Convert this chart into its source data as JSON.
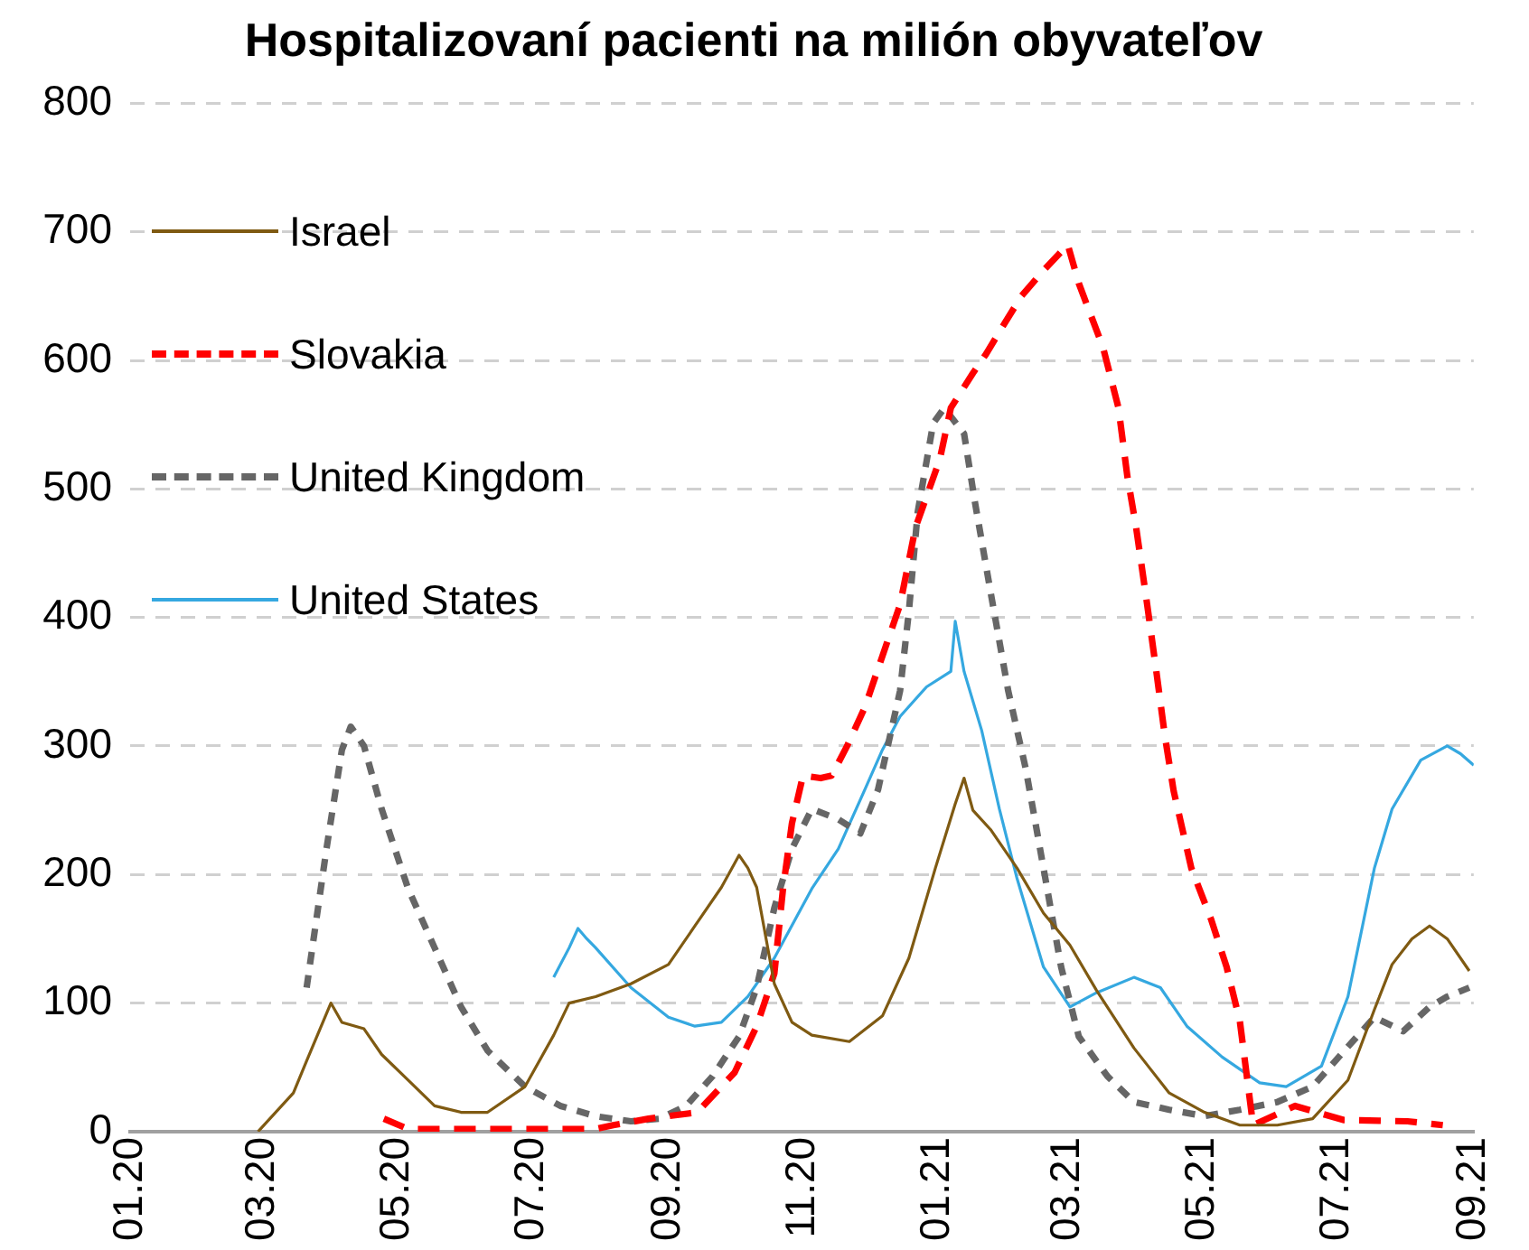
{
  "chart_data": {
    "type": "line",
    "title": "Hospitalizovaní pacienti na milión obyvateľov",
    "ylim": [
      0,
      800
    ],
    "yticks": [
      0,
      100,
      200,
      300,
      400,
      500,
      600,
      700,
      800
    ],
    "xlim": [
      "2020-01-01",
      "2021-09-01"
    ],
    "xticks": [
      {
        "value": "2020-01-01",
        "label": "01.20"
      },
      {
        "value": "2020-03-01",
        "label": "03.20"
      },
      {
        "value": "2020-05-01",
        "label": "05.20"
      },
      {
        "value": "2020-07-01",
        "label": "07.20"
      },
      {
        "value": "2020-09-01",
        "label": "09.20"
      },
      {
        "value": "2020-11-01",
        "label": "11.20"
      },
      {
        "value": "2021-01-01",
        "label": "01.21"
      },
      {
        "value": "2021-03-01",
        "label": "03.21"
      },
      {
        "value": "2021-05-01",
        "label": "05.21"
      },
      {
        "value": "2021-07-01",
        "label": "07.21"
      },
      {
        "value": "2021-09-01",
        "label": "09.21"
      }
    ],
    "grid": "y",
    "legend": "top left",
    "marker": "none",
    "series": [
      {
        "name": "Israel",
        "color": "#7f5a12",
        "line_style": "solid",
        "x": [
          "2020-02-28",
          "2020-03-15",
          "2020-03-21",
          "2020-04-01",
          "2020-04-06",
          "2020-04-16",
          "2020-04-24",
          "2020-05-06",
          "2020-05-18",
          "2020-05-30",
          "2020-06-11",
          "2020-06-28",
          "2020-07-11",
          "2020-07-18",
          "2020-07-30",
          "2020-08-15",
          "2020-09-01",
          "2020-09-13",
          "2020-09-25",
          "2020-10-03",
          "2020-10-07",
          "2020-10-11",
          "2020-10-19",
          "2020-10-27",
          "2020-11-05",
          "2020-11-22",
          "2020-12-07",
          "2020-12-19",
          "2020-12-31",
          "2021-01-09",
          "2021-01-13",
          "2021-01-17",
          "2021-01-25",
          "2021-02-06",
          "2021-02-18",
          "2021-03-02",
          "2021-03-14",
          "2021-03-31",
          "2021-04-16",
          "2021-05-02",
          "2021-05-18",
          "2021-06-04",
          "2021-06-20",
          "2021-07-06",
          "2021-07-18",
          "2021-07-26",
          "2021-08-04",
          "2021-08-12",
          "2021-08-20",
          "2021-08-30"
        ],
        "values": [
          0,
          30,
          55,
          100,
          85,
          80,
          60,
          40,
          20,
          15,
          15,
          35,
          75,
          100,
          105,
          115,
          130,
          160,
          190,
          215,
          205,
          190,
          115,
          85,
          75,
          70,
          90,
          135,
          205,
          255,
          275,
          250,
          235,
          205,
          170,
          145,
          110,
          65,
          30,
          15,
          5,
          5,
          10,
          40,
          95,
          130,
          150,
          160,
          150,
          125
        ]
      },
      {
        "name": "Slovakia",
        "color": "#ff0000",
        "line_style": "dashed",
        "x": [
          "2020-04-25",
          "2020-05-06",
          "2020-06-11",
          "2020-07-30",
          "2020-08-07",
          "2020-08-23",
          "2020-09-14",
          "2020-10-01",
          "2020-10-11",
          "2020-10-19",
          "2020-10-23",
          "2020-10-27",
          "2020-11-01",
          "2020-11-09",
          "2020-11-14",
          "2020-11-21",
          "2020-11-29",
          "2020-12-07",
          "2020-12-15",
          "2020-12-22",
          "2021-01-02",
          "2021-01-07",
          "2021-01-17",
          "2021-01-23",
          "2021-01-30",
          "2021-02-08",
          "2021-02-18",
          "2021-03-01",
          "2021-03-06",
          "2021-03-17",
          "2021-03-24",
          "2021-03-28",
          "2021-04-01",
          "2021-04-06",
          "2021-04-10",
          "2021-04-14",
          "2021-04-18",
          "2021-04-26",
          "2021-05-05",
          "2021-05-12",
          "2021-05-18",
          "2021-05-24",
          "2021-06-12",
          "2021-07-04",
          "2021-08-02",
          "2021-08-18"
        ],
        "values": [
          10,
          2,
          2,
          2,
          5,
          10,
          15,
          46,
          82,
          123,
          190,
          240,
          277,
          275,
          277,
          300,
          330,
          370,
          410,
          470,
          523,
          563,
          590,
          605,
          625,
          650,
          670,
          690,
          660,
          610,
          563,
          510,
          470,
          410,
          360,
          308,
          265,
          205,
          165,
          128,
          86,
          5,
          20,
          9,
          8,
          5
        ]
      },
      {
        "name": "United Kingdom",
        "color": "#666666",
        "line_style": "dashed",
        "x": [
          "2020-03-21",
          "2020-03-30",
          "2020-04-06",
          "2020-04-10",
          "2020-04-16",
          "2020-04-24",
          "2020-05-06",
          "2020-05-18",
          "2020-05-30",
          "2020-06-11",
          "2020-06-28",
          "2020-07-14",
          "2020-07-30",
          "2020-08-15",
          "2020-08-28",
          "2020-09-09",
          "2020-09-21",
          "2020-10-03",
          "2020-10-11",
          "2020-10-19",
          "2020-10-27",
          "2020-11-05",
          "2020-11-17",
          "2020-11-27",
          "2020-12-05",
          "2020-12-11",
          "2020-12-15",
          "2020-12-19",
          "2020-12-23",
          "2020-12-30",
          "2021-01-04",
          "2021-01-13",
          "2021-01-18",
          "2021-01-25",
          "2021-02-02",
          "2021-02-10",
          "2021-02-18",
          "2021-02-26",
          "2021-03-06",
          "2021-03-19",
          "2021-03-31",
          "2021-04-16",
          "2021-05-02",
          "2021-05-18",
          "2021-06-04",
          "2021-06-20",
          "2021-07-06",
          "2021-07-18",
          "2021-07-31",
          "2021-08-12",
          "2021-08-20",
          "2021-08-30"
        ],
        "values": [
          112,
          220,
          297,
          315,
          300,
          251,
          189,
          143,
          97,
          63,
          35,
          20,
          12,
          8,
          10,
          20,
          43,
          74,
          112,
          174,
          220,
          251,
          243,
          232,
          266,
          312,
          343,
          405,
          482,
          551,
          563,
          543,
          489,
          420,
          343,
          282,
          205,
          128,
          74,
          43,
          23,
          17,
          12,
          17,
          23,
          35,
          66,
          89,
          78,
          97,
          105,
          112
        ]
      },
      {
        "name": "United States",
        "color": "#35a8e0",
        "line_style": "solid",
        "x": [
          "2020-07-11",
          "2020-07-18",
          "2020-07-22",
          "2020-07-26",
          "2020-07-30",
          "2020-08-15",
          "2020-09-01",
          "2020-09-13",
          "2020-09-25",
          "2020-10-07",
          "2020-10-19",
          "2020-11-05",
          "2020-11-17",
          "2020-11-29",
          "2020-12-07",
          "2020-12-15",
          "2020-12-27",
          "2021-01-07",
          "2021-01-09",
          "2021-01-13",
          "2021-01-21",
          "2021-01-29",
          "2021-02-06",
          "2021-02-18",
          "2021-03-02",
          "2021-03-14",
          "2021-03-31",
          "2021-04-12",
          "2021-04-24",
          "2021-05-10",
          "2021-05-27",
          "2021-06-08",
          "2021-06-24",
          "2021-07-06",
          "2021-07-18",
          "2021-07-26",
          "2021-08-08",
          "2021-08-20",
          "2021-08-26",
          "2021-09-01"
        ],
        "values": [
          120,
          143,
          158,
          150,
          143,
          112,
          89,
          82,
          85,
          105,
          135,
          189,
          220,
          266,
          297,
          323,
          346,
          358,
          397,
          358,
          312,
          251,
          197,
          128,
          97,
          108,
          120,
          112,
          82,
          58,
          38,
          35,
          51,
          105,
          205,
          251,
          289,
          300,
          294,
          285
        ]
      }
    ]
  }
}
